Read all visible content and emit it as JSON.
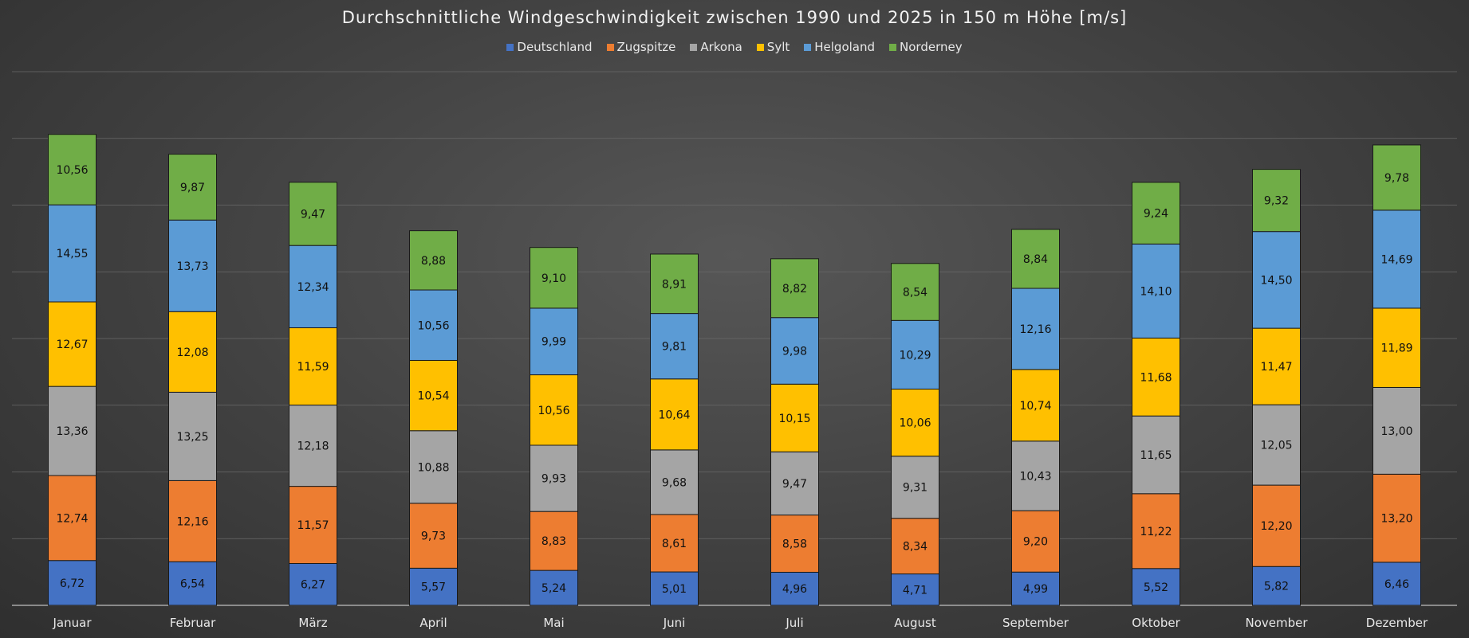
{
  "chart_data": {
    "type": "bar",
    "stacked": true,
    "title": "Durchschnittliche Windgeschwindigkeit zwischen 1990 und 2025 in 150 m Höhe [m/s]",
    "xlabel": "",
    "ylabel": "",
    "ylim": [
      0,
      80
    ],
    "grid": true,
    "legend_position": "top",
    "categories": [
      "Januar",
      "Februar",
      "März",
      "April",
      "Mai",
      "Juni",
      "Juli",
      "August",
      "September",
      "Oktober",
      "November",
      "Dezember"
    ],
    "series": [
      {
        "name": "Deutschland",
        "color": "#4472c4",
        "labels": [
          "6,72",
          "6,54",
          "6,27",
          "5,57",
          "5,24",
          "5,01",
          "4,96",
          "4,71",
          "4,99",
          "5,52",
          "5,82",
          "6,46"
        ],
        "values": [
          6.72,
          6.54,
          6.27,
          5.57,
          5.24,
          5.01,
          4.96,
          4.71,
          4.99,
          5.52,
          5.82,
          6.46
        ]
      },
      {
        "name": "Zugspitze",
        "color": "#ed7d31",
        "labels": [
          "12,74",
          "12,16",
          "11,57",
          "9,73",
          "8,83",
          "8,61",
          "8,58",
          "8,34",
          "9,20",
          "11,22",
          "12,20",
          "13,20"
        ],
        "values": [
          12.74,
          12.16,
          11.57,
          9.73,
          8.83,
          8.61,
          8.58,
          8.34,
          9.2,
          11.22,
          12.2,
          13.2
        ]
      },
      {
        "name": "Arkona",
        "color": "#a5a5a5",
        "labels": [
          "13,36",
          "13,25",
          "12,18",
          "10,88",
          "9,93",
          "9,68",
          "9,47",
          "9,31",
          "10,43",
          "11,65",
          "12,05",
          "13,00"
        ],
        "values": [
          13.36,
          13.25,
          12.18,
          10.88,
          9.93,
          9.68,
          9.47,
          9.31,
          10.43,
          11.65,
          12.05,
          13.0
        ]
      },
      {
        "name": "Sylt",
        "color": "#ffc000",
        "labels": [
          "12,67",
          "12,08",
          "11,59",
          "10,54",
          "10,56",
          "10,64",
          "10,15",
          "10,06",
          "10,74",
          "11,68",
          "11,47",
          "11,89"
        ],
        "values": [
          12.67,
          12.08,
          11.59,
          10.54,
          10.56,
          10.64,
          10.15,
          10.06,
          10.74,
          11.68,
          11.47,
          11.89
        ]
      },
      {
        "name": "Helgoland",
        "color": "#5b9bd5",
        "labels": [
          "14,55",
          "13,73",
          "12,34",
          "10,56",
          "9,99",
          "9,81",
          "9,98",
          "10,29",
          "12,16",
          "14,10",
          "14,50",
          "14,69"
        ],
        "values": [
          14.55,
          13.73,
          12.34,
          10.56,
          9.99,
          9.81,
          9.98,
          10.29,
          12.16,
          14.1,
          14.5,
          14.69
        ]
      },
      {
        "name": "Norderney",
        "color": "#70ad47",
        "labels": [
          "10,56",
          "9,87",
          "9,47",
          "8,88",
          "9,10",
          "8,91",
          "8,82",
          "8,54",
          "8,84",
          "9,24",
          "9,32",
          "9,78"
        ],
        "values": [
          10.56,
          9.87,
          9.47,
          8.88,
          9.1,
          8.91,
          8.82,
          8.54,
          8.84,
          9.24,
          9.32,
          9.78
        ]
      }
    ]
  }
}
